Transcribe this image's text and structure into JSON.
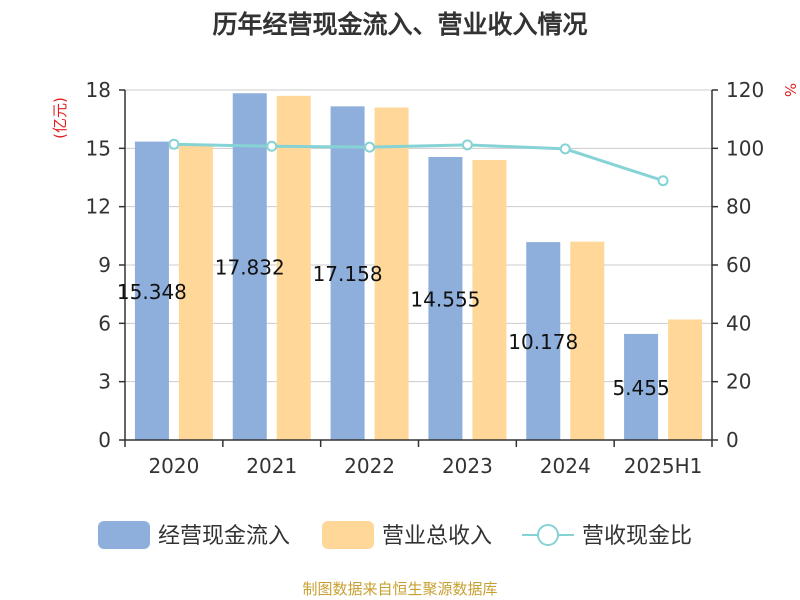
{
  "chart_data": {
    "type": "bar",
    "title": "历年经营现金流入、营业收入情况",
    "categories": [
      "2020",
      "2021",
      "2022",
      "2023",
      "2024",
      "2025H1"
    ],
    "series": [
      {
        "name": "经营现金流入",
        "type": "bar",
        "axis": "left",
        "color": "#8eaedb",
        "values": [
          15.348,
          17.832,
          17.158,
          14.555,
          10.178,
          5.455
        ],
        "labels": [
          "15.348",
          "17.832",
          "17.158",
          "14.555",
          "10.178",
          "5.455"
        ]
      },
      {
        "name": "营业总收入",
        "type": "bar",
        "axis": "left",
        "color": "#ffd899",
        "values": [
          15.2,
          17.7,
          17.1,
          14.4,
          10.2,
          6.2
        ]
      },
      {
        "name": "营收现金比",
        "type": "line",
        "axis": "right",
        "color": "#86d3d6",
        "values": [
          101.4,
          100.7,
          100.4,
          101.2,
          99.8,
          88.9
        ]
      }
    ],
    "y_left": {
      "label": "(亿元)",
      "min": 0,
      "max": 18,
      "ticks": [
        0,
        3,
        6,
        9,
        12,
        15,
        18
      ]
    },
    "y_right": {
      "label": "%",
      "min": 0,
      "max": 120,
      "ticks": [
        0,
        20,
        40,
        60,
        80,
        100,
        120
      ]
    },
    "grid": true,
    "legend_position": "bottom"
  },
  "footer": {
    "source": "制图数据来自恒生聚源数据库"
  }
}
